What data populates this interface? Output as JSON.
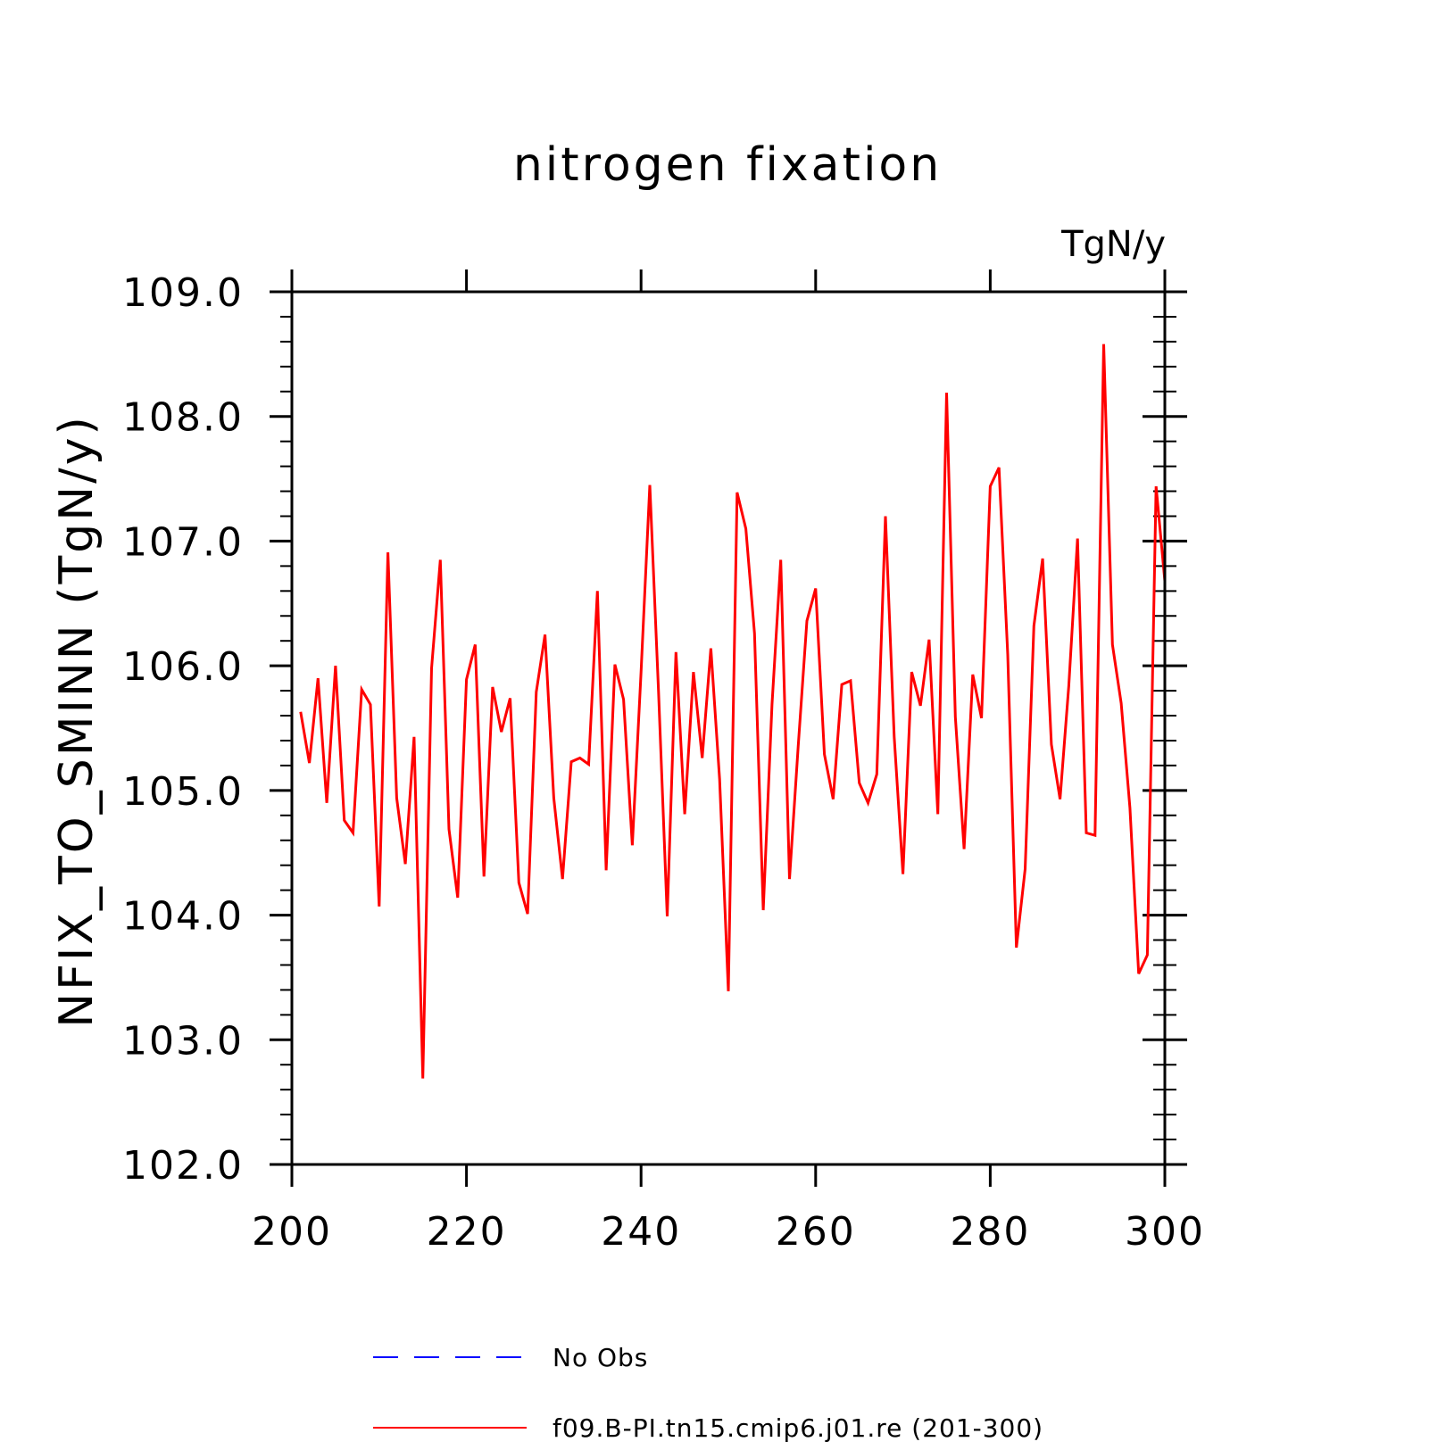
{
  "chart_data": {
    "type": "line",
    "title": "nitrogen fixation",
    "units": "TgN/y",
    "ylabel": "NFIX_TO_SMINN   (TgN/y)",
    "xlabel": "",
    "xlim": [
      200,
      300
    ],
    "ylim": [
      102.0,
      109.0
    ],
    "xticks": [
      "200",
      "220",
      "240",
      "260",
      "280",
      "300"
    ],
    "yticks": [
      "102.0",
      "103.0",
      "104.0",
      "105.0",
      "106.0",
      "107.0",
      "108.0",
      "109.0"
    ],
    "legend": [
      {
        "label": "No Obs",
        "color": "#0000ff",
        "style": "dashed"
      },
      {
        "label": "f09.B-PI.tn15.cmip6.j01.re (201-300)",
        "color": "#ff0000",
        "style": "solid"
      }
    ],
    "series": [
      {
        "name": "f09.B-PI.tn15.cmip6.j01.re (201-300)",
        "color": "#ff0000",
        "x": [
          201,
          202,
          203,
          204,
          205,
          206,
          207,
          208,
          209,
          210,
          211,
          212,
          213,
          214,
          215,
          216,
          217,
          218,
          219,
          220,
          221,
          222,
          223,
          224,
          225,
          226,
          227,
          228,
          229,
          230,
          231,
          232,
          233,
          234,
          235,
          236,
          237,
          238,
          239,
          240,
          241,
          242,
          243,
          244,
          245,
          246,
          247,
          248,
          249,
          250,
          251,
          252,
          253,
          254,
          255,
          256,
          257,
          258,
          259,
          260,
          261,
          262,
          263,
          264,
          265,
          266,
          267,
          268,
          269,
          270,
          271,
          272,
          273,
          274,
          275,
          276,
          277,
          278,
          279,
          280,
          281,
          282,
          283,
          284,
          285,
          286,
          287,
          288,
          289,
          290,
          291,
          292,
          293,
          294,
          295,
          296,
          297,
          298,
          299,
          300
        ],
        "values": [
          105.63,
          105.22,
          105.9,
          104.9,
          106.0,
          104.76,
          104.66,
          105.81,
          105.69,
          104.07,
          106.91,
          104.94,
          104.41,
          105.43,
          102.69,
          105.98,
          106.85,
          104.69,
          104.14,
          105.89,
          106.17,
          104.31,
          105.83,
          105.47,
          105.74,
          104.26,
          104.01,
          105.79,
          106.25,
          104.94,
          104.29,
          105.23,
          105.26,
          105.21,
          106.6,
          104.36,
          106.01,
          105.73,
          104.56,
          105.95,
          107.45,
          105.79,
          103.99,
          106.11,
          104.81,
          105.95,
          105.26,
          106.14,
          105.09,
          103.39,
          107.39,
          107.1,
          106.26,
          104.04,
          105.69,
          106.85,
          104.29,
          105.35,
          106.36,
          106.62,
          105.29,
          104.93,
          105.85,
          105.88,
          105.06,
          104.9,
          105.13,
          107.2,
          105.43,
          104.33,
          105.95,
          105.68,
          106.21,
          104.81,
          108.19,
          105.59,
          104.53,
          105.93,
          105.58,
          107.44,
          107.59,
          106.09,
          103.74,
          104.37,
          106.32,
          106.86,
          105.37,
          104.93,
          105.84,
          107.02,
          104.66,
          104.64,
          108.58,
          106.17,
          105.7,
          104.86,
          103.53,
          103.68,
          107.44,
          106.68
        ]
      }
    ]
  }
}
